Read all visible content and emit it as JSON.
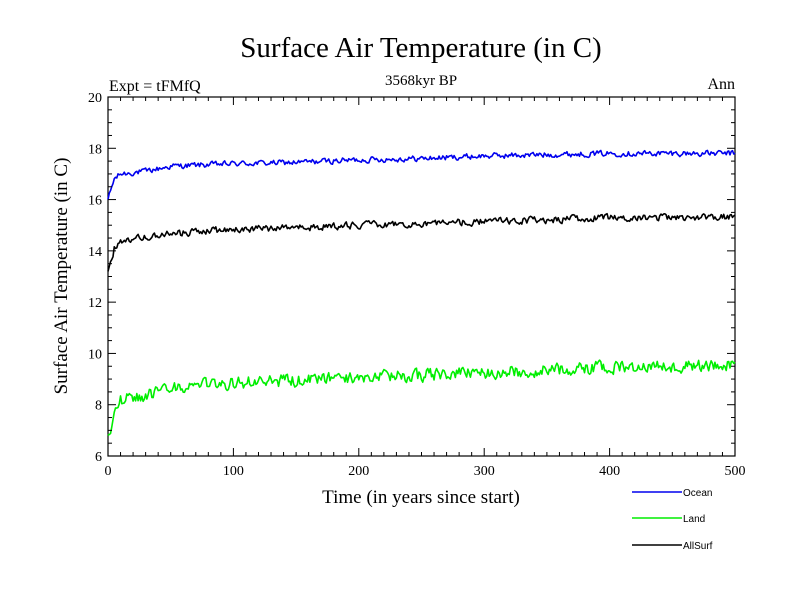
{
  "chart_data": {
    "type": "line",
    "title": "Surface Air Temperature (in C)",
    "subtitle": "3568kyr BP",
    "left_label": "Expt = tFMfQ",
    "right_label": "Ann",
    "xlabel": "Time (in years since start)",
    "ylabel": "Surface Air Temperature (in C)",
    "xlim": [
      0,
      500
    ],
    "ylim": [
      6,
      20
    ],
    "x_ticks": [
      0,
      100,
      200,
      300,
      400,
      500
    ],
    "y_ticks": [
      6,
      8,
      10,
      12,
      14,
      16,
      18,
      20
    ],
    "grid": false,
    "legend_position": "bottom-right",
    "series": [
      {
        "name": "Ocean",
        "color": "#0000ee",
        "x": [
          0,
          5,
          10,
          20,
          30,
          40,
          50,
          75,
          100,
          150,
          200,
          250,
          300,
          350,
          400,
          450,
          500
        ],
        "values": [
          16.0,
          16.8,
          17.0,
          17.05,
          17.1,
          17.2,
          17.3,
          17.35,
          17.4,
          17.45,
          17.55,
          17.6,
          17.7,
          17.75,
          17.8,
          17.8,
          17.8
        ],
        "noise": 0.1
      },
      {
        "name": "Land",
        "color": "#00ee00",
        "x": [
          0,
          5,
          10,
          20,
          30,
          40,
          50,
          75,
          100,
          150,
          200,
          250,
          300,
          350,
          400,
          450,
          500
        ],
        "values": [
          6.8,
          7.6,
          8.2,
          8.3,
          8.35,
          8.45,
          8.6,
          8.75,
          8.85,
          8.95,
          9.05,
          9.15,
          9.25,
          9.35,
          9.45,
          9.5,
          9.55
        ],
        "noise": 0.22
      },
      {
        "name": "AllSurf",
        "color": "#000000",
        "x": [
          0,
          5,
          10,
          20,
          30,
          40,
          50,
          75,
          100,
          150,
          200,
          250,
          300,
          350,
          400,
          450,
          500
        ],
        "values": [
          13.2,
          14.1,
          14.4,
          14.5,
          14.55,
          14.6,
          14.65,
          14.75,
          14.85,
          14.9,
          15.0,
          15.05,
          15.15,
          15.2,
          15.3,
          15.3,
          15.35
        ],
        "noise": 0.12
      }
    ]
  }
}
